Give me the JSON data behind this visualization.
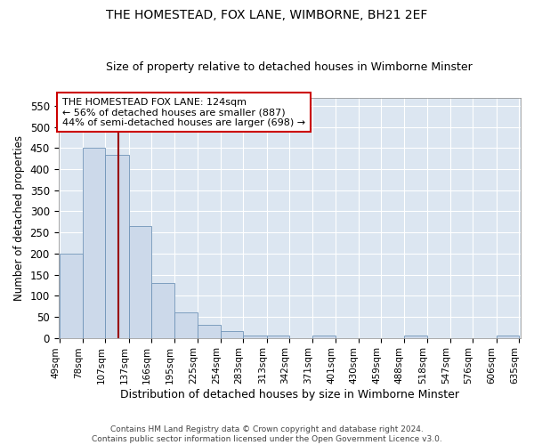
{
  "title": "THE HOMESTEAD, FOX LANE, WIMBORNE, BH21 2EF",
  "subtitle": "Size of property relative to detached houses in Wimborne Minster",
  "xlabel": "Distribution of detached houses by size in Wimborne Minster",
  "ylabel": "Number of detached properties",
  "footer1": "Contains HM Land Registry data © Crown copyright and database right 2024.",
  "footer2": "Contains public sector information licensed under the Open Government Licence v3.0.",
  "bar_color": "#ccd9ea",
  "bar_edge_color": "#7094b8",
  "background_color": "#dce6f1",
  "grid_color": "#ffffff",
  "vline_color": "#990000",
  "vline_x": 124,
  "annotation_line1": "THE HOMESTEAD FOX LANE: 124sqm",
  "annotation_line2": "← 56% of detached houses are smaller (887)",
  "annotation_line3": "44% of semi-detached houses are larger (698) →",
  "annotation_box_color": "#ffffff",
  "annotation_box_edge": "#cc0000",
  "bin_edges": [
    49,
    78,
    107,
    137,
    166,
    195,
    225,
    254,
    283,
    313,
    342,
    371,
    401,
    430,
    459,
    488,
    518,
    547,
    576,
    606,
    635
  ],
  "bar_heights": [
    200,
    450,
    435,
    265,
    130,
    60,
    30,
    15,
    5,
    5,
    0,
    5,
    0,
    0,
    0,
    5,
    0,
    0,
    0,
    5
  ],
  "ylim": [
    0,
    570
  ],
  "yticks": [
    0,
    50,
    100,
    150,
    200,
    250,
    300,
    350,
    400,
    450,
    500,
    550
  ]
}
